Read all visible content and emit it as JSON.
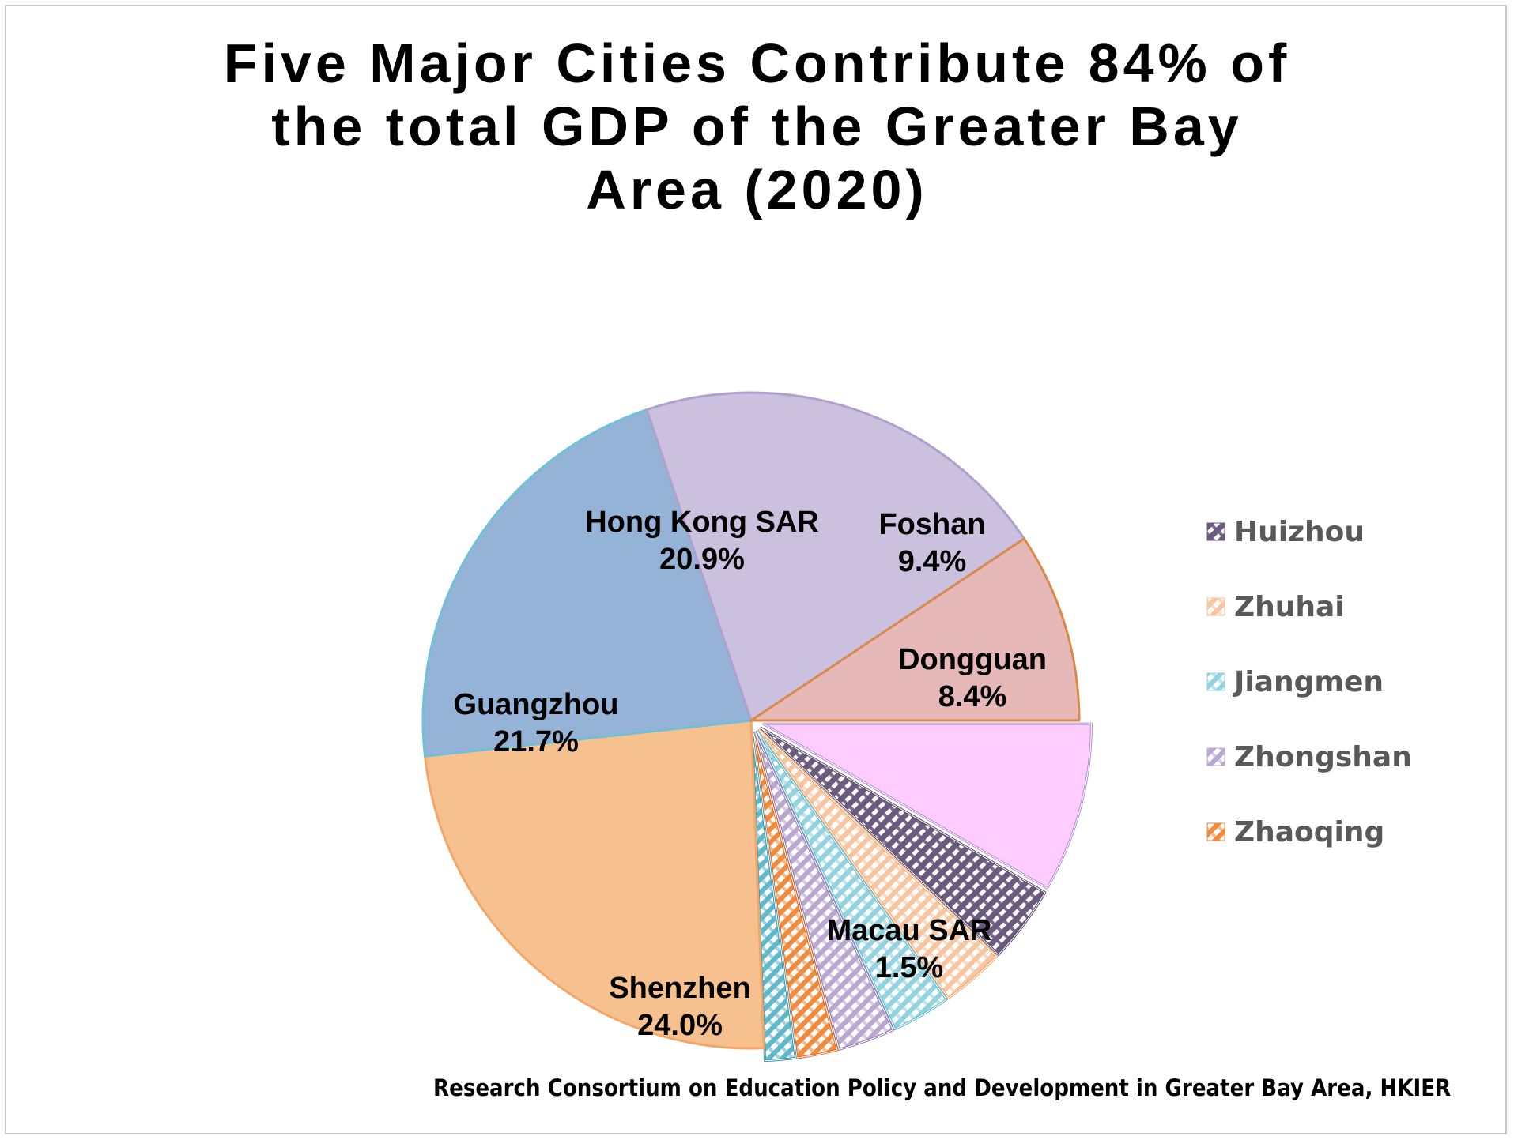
{
  "title_lines": [
    "Five Major Cities Contribute 84% of",
    "the total GDP of the Greater Bay",
    "Area (2020)"
  ],
  "source": "Research Consortium on Education Policy and Development in Greater Bay Area, HKIER",
  "chart_data": {
    "type": "pie",
    "title": "Five Major Cities Contribute 84% of the total GDP of the Greater Bay Area (2020)",
    "slices": [
      {
        "name": "Dongguan",
        "value": 8.4,
        "label": "8.4%",
        "color": "#ffccff",
        "stroke": "#b48fd6",
        "pattern": null,
        "exploded": true,
        "labeled": true
      },
      {
        "name": "Huizhou",
        "value": 3.8,
        "label": "",
        "color": "#6b5a7e",
        "stroke": "#5a4a6a",
        "pattern": "dark",
        "exploded": true,
        "labeled": false
      },
      {
        "name": "Zhuhai",
        "value": 3.1,
        "label": "",
        "color": "#f7c59f",
        "stroke": "#f2a66a",
        "pattern": "light",
        "exploded": true,
        "labeled": false
      },
      {
        "name": "Jiangmen",
        "value": 2.9,
        "label": "",
        "color": "#93d3df",
        "stroke": "#5fb8cc",
        "pattern": "light",
        "exploded": true,
        "labeled": false
      },
      {
        "name": "Zhongshan",
        "value": 2.8,
        "label": "",
        "color": "#b9a7d0",
        "stroke": "#8f7ab0",
        "pattern": "light",
        "exploded": true,
        "labeled": false
      },
      {
        "name": "Zhaoqing",
        "value": 2.0,
        "label": "",
        "color": "#f08a3c",
        "stroke": "#e06a1c",
        "pattern": "light",
        "exploded": true,
        "labeled": false
      },
      {
        "name": "Macau SAR",
        "value": 1.5,
        "label": "1.5%",
        "color": "#5fb8cc",
        "stroke": "#3f98ac",
        "pattern": "light",
        "exploded": true,
        "labeled": true
      },
      {
        "name": "Shenzhen",
        "value": 24.0,
        "label": "24.0%",
        "color": "#f7c08f",
        "stroke": "#f2a66a",
        "pattern": null,
        "exploded": false,
        "labeled": true
      },
      {
        "name": "Guangzhou",
        "value": 21.7,
        "label": "21.7%",
        "color": "#95b3d7",
        "stroke": "#6fc0d8",
        "pattern": null,
        "exploded": false,
        "labeled": true
      },
      {
        "name": "Hong Kong SAR",
        "value": 20.9,
        "label": "20.9%",
        "color": "#cbc0dd",
        "stroke": "#b0a0d0",
        "pattern": null,
        "exploded": false,
        "labeled": true
      },
      {
        "name": "Foshan",
        "value": 9.4,
        "label": "9.4%",
        "color": "#e6b9b8",
        "stroke": "#d98a4a",
        "pattern": null,
        "exploded": false,
        "labeled": true
      }
    ],
    "legend": {
      "placement": "right",
      "items": [
        {
          "name": "Huizhou",
          "color": "#6b5a7e"
        },
        {
          "name": "Zhuhai",
          "color": "#f7c59f"
        },
        {
          "name": "Jiangmen",
          "color": "#93d3df"
        },
        {
          "name": "Zhongshan",
          "color": "#b9a7d0"
        },
        {
          "name": "Zhaoqing",
          "color": "#f08a3c"
        }
      ]
    }
  }
}
